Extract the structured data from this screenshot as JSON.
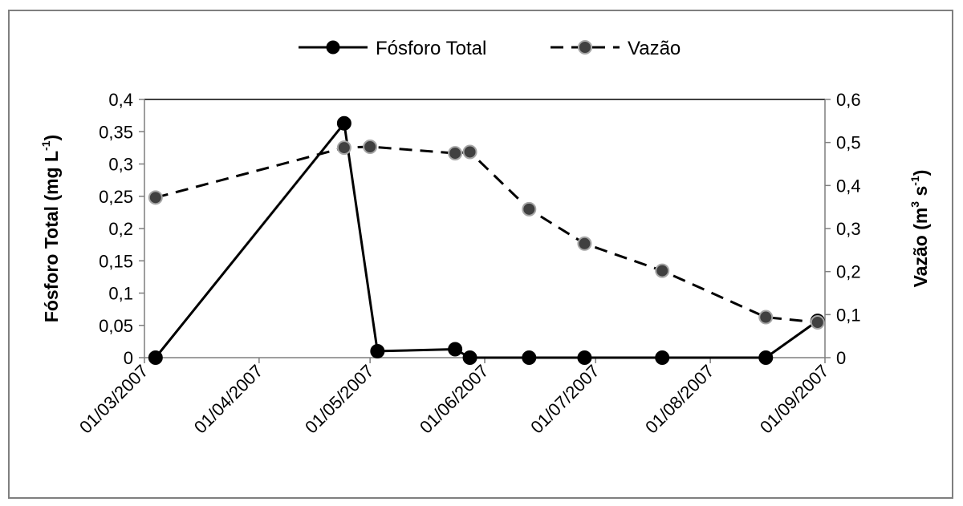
{
  "chart_data": {
    "type": "line",
    "title": "",
    "xlabel": "",
    "ylabel": "Fósforo Total (mg L",
    "ylabel_sup": "-1",
    "ylabel_end": ")",
    "y2label": "Vazão (m",
    "y2label_sup1": "3",
    "y2label_mid": " s",
    "y2label_sup2": "-1",
    "y2label_end": ")",
    "x_ticks": [
      "01/03/2007",
      "01/04/2007",
      "01/05/2007",
      "01/06/2007",
      "01/07/2007",
      "01/08/2007",
      "01/09/2007"
    ],
    "ylim": [
      0,
      0.4
    ],
    "y_ticks": [
      "0",
      "0,05",
      "0,1",
      "0,15",
      "0,2",
      "0,25",
      "0,3",
      "0,35",
      "0,4"
    ],
    "y2lim": [
      0,
      0.6
    ],
    "y2_ticks": [
      "0",
      "0,1",
      "0,2",
      "0,3",
      "0,4",
      "0,5",
      "0,6"
    ],
    "legend_position": "top-center",
    "series": [
      {
        "name": "Fósforo Total",
        "axis": "left",
        "style": "solid",
        "color": "#000000",
        "x": [
          "2007-03-04",
          "2007-04-24",
          "2007-05-03",
          "2007-05-24",
          "2007-05-28",
          "2007-06-13",
          "2007-06-28",
          "2007-07-19",
          "2007-08-16",
          "2007-08-30"
        ],
        "y": [
          0.0,
          0.363,
          0.01,
          0.013,
          0.0,
          0.0,
          0.0,
          0.0,
          0.0,
          0.057
        ]
      },
      {
        "name": "Vazão",
        "axis": "right",
        "style": "dashed",
        "color": "#000000",
        "marker_fill": "#404040",
        "x": [
          "2007-03-04",
          "2007-04-24",
          "2007-05-01",
          "2007-05-24",
          "2007-05-28",
          "2007-06-13",
          "2007-06-28",
          "2007-07-19",
          "2007-08-16",
          "2007-08-30"
        ],
        "y": [
          0.372,
          0.488,
          0.49,
          0.475,
          0.478,
          0.345,
          0.265,
          0.202,
          0.094,
          0.082
        ]
      }
    ]
  }
}
